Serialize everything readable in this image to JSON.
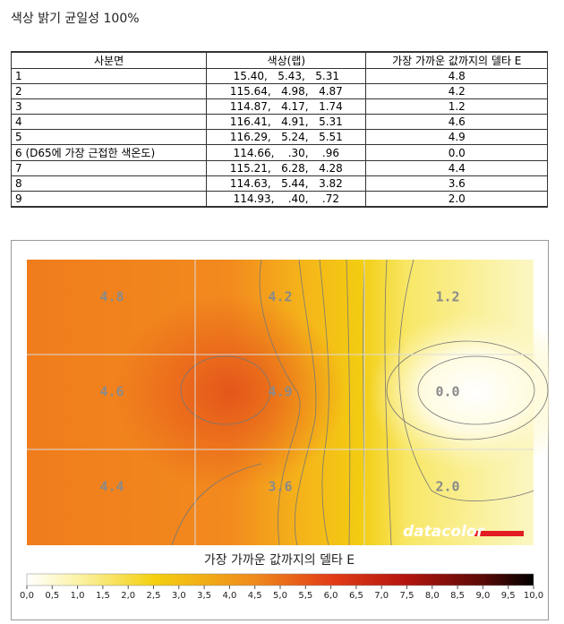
{
  "title": "색상 밝기 균일성 100%",
  "table": {
    "header": [
      "사분면",
      "색상(랩)",
      "가장 가까운 값까지의 델타 E"
    ],
    "rows": [
      [
        "1",
        "15.40,   5.43,   5.31",
        "4.8"
      ],
      [
        "2",
        "115.64,   4.98,   4.87",
        "4.2"
      ],
      [
        "3",
        "114.87,   4.17,   1.74",
        "1.2"
      ],
      [
        "4",
        "116.41,   4.91,   5.31",
        "4.6"
      ],
      [
        "5",
        "116.29,   5.24,   5.51",
        "4.9"
      ],
      [
        "6 (D65에 가장 근접한 색온도)",
        "114.66,    .30,    .96",
        "0.0"
      ],
      [
        "7",
        "115.21,   6.28,   4.28",
        "4.4"
      ],
      [
        "8",
        "114.63,   5.44,   3.82",
        "3.6"
      ],
      [
        "9",
        "114.93,    .40,    .72",
        "2.0"
      ]
    ]
  },
  "heatmap": {
    "cells": [
      "4.8",
      "4.2",
      "1.2",
      "4.6",
      "4.9",
      "0.0",
      "4.4",
      "3.6",
      "2.0"
    ],
    "logo": "datacolor",
    "legend_title": "가장 가까운 값까지의 델타 E",
    "legend_ticks": [
      "0,0",
      "0,5",
      "1,0",
      "1,5",
      "2,0",
      "2,5",
      "3,0",
      "3,5",
      "4,0",
      "4,5",
      "5,0",
      "5,5",
      "6,0",
      "6,5",
      "7,0",
      "7,5",
      "8,0",
      "8,5",
      "9,0",
      "9,5",
      "10,0"
    ]
  }
}
